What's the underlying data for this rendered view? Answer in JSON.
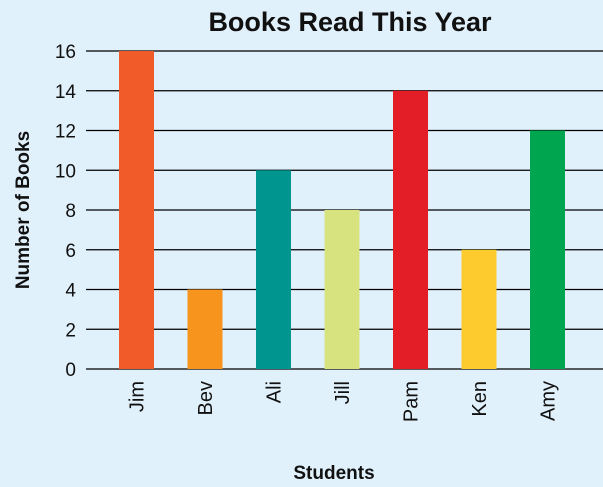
{
  "chart_data": {
    "type": "bar",
    "title": "Books Read This Year",
    "xlabel": "Students",
    "ylabel": "Number of Books",
    "categories": [
      "Jim",
      "Bev",
      "Ali",
      "Jill",
      "Pam",
      "Ken",
      "Amy"
    ],
    "values": [
      16,
      4,
      10,
      8,
      14,
      6,
      12
    ],
    "colors": [
      "#f15a29",
      "#f7941d",
      "#00958f",
      "#d7e37f",
      "#e31e26",
      "#fdcb2d",
      "#00a550"
    ],
    "ylim": [
      0,
      16
    ],
    "yticks": [
      0,
      2,
      4,
      6,
      8,
      10,
      12,
      14,
      16
    ],
    "grid": true
  }
}
